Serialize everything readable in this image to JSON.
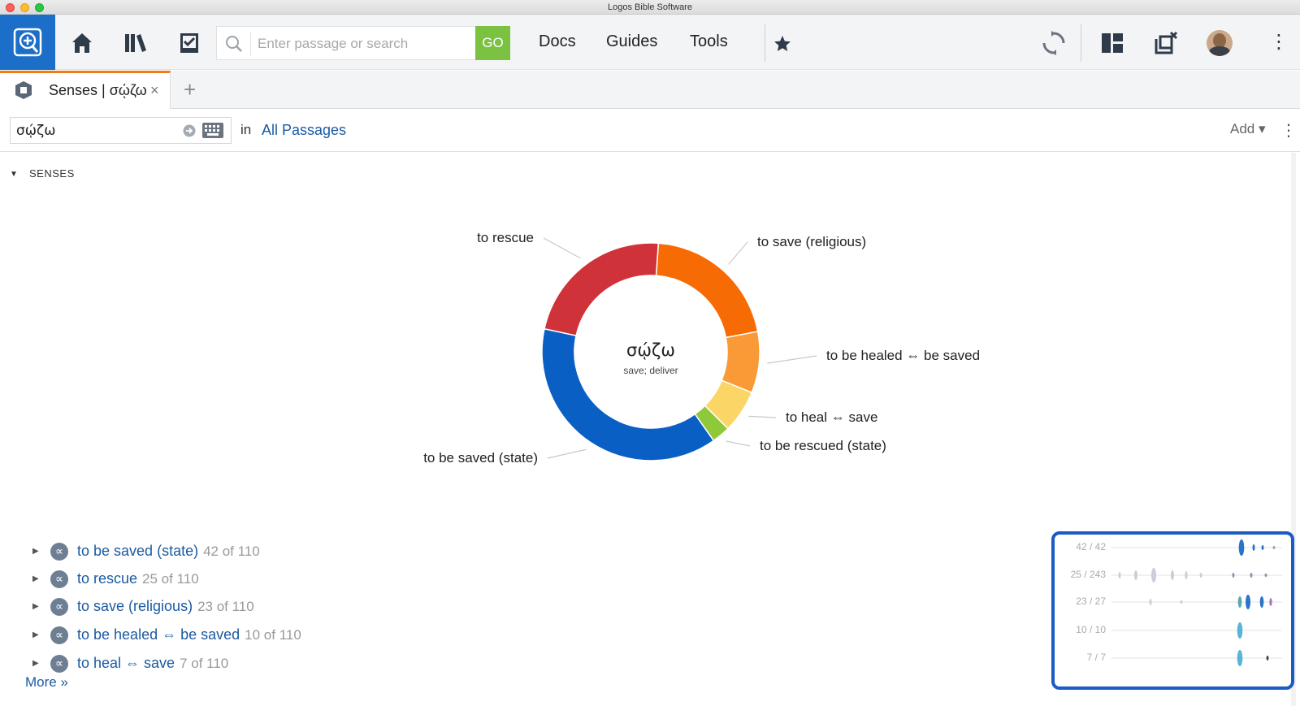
{
  "window": {
    "title": "Logos Bible Software"
  },
  "toolbar": {
    "search_placeholder": "Enter passage or search",
    "go_label": "GO",
    "nav": [
      "Docs",
      "Guides",
      "Tools"
    ]
  },
  "tab": {
    "label": "Senses | σῴζω",
    "close": "×",
    "add": "+"
  },
  "query": {
    "value": "σῴζω",
    "in_label": "in",
    "scope": "All Passages",
    "add_label": "Add ▾",
    "more": "⋮"
  },
  "section": {
    "title": "SENSES",
    "arrow": "▼"
  },
  "chart_data": {
    "type": "pie",
    "center_title": "σῴζω",
    "center_subtitle": "save; deliver",
    "slices": [
      {
        "label": "to save (religious)",
        "value": 23,
        "color": "#f76b05"
      },
      {
        "label": "to be healed ⇔ be saved",
        "value": 10,
        "color": "#f99a36"
      },
      {
        "label": "to heal ⇔ save",
        "value": 7,
        "color": "#fbd566"
      },
      {
        "label": "to be rescued (state)",
        "value": 3,
        "color": "#8fc93a"
      },
      {
        "label": "to be saved (state)",
        "value": 42,
        "color": "#0a5fc4"
      },
      {
        "label": "to rescue",
        "value": 25,
        "color": "#d0323a"
      }
    ]
  },
  "senses": {
    "items": [
      {
        "label": "to be saved (state)",
        "count": "42 of 110"
      },
      {
        "label": "to rescue",
        "count": "25 of 110"
      },
      {
        "label": "to save (religious)",
        "count": "23 of 110"
      },
      {
        "label": "to be healed ⇔ be saved",
        "count": "10 of 110"
      },
      {
        "label": "to heal ⇔ save",
        "count": "7 of 110"
      }
    ],
    "more_label": "More »",
    "icon_glyph": "∝"
  },
  "sparklines": [
    {
      "count": "42 / 42"
    },
    {
      "count": "25 / 243"
    },
    {
      "count": "23 / 27"
    },
    {
      "count": "10 / 10"
    },
    {
      "count": "7 / 7"
    }
  ],
  "colors": {
    "accent": "#1b6fc9",
    "go": "#7cc242",
    "tab_accent": "#f07c19",
    "link": "#1b5aa3",
    "highlight_frame": "#1a5bc4"
  }
}
